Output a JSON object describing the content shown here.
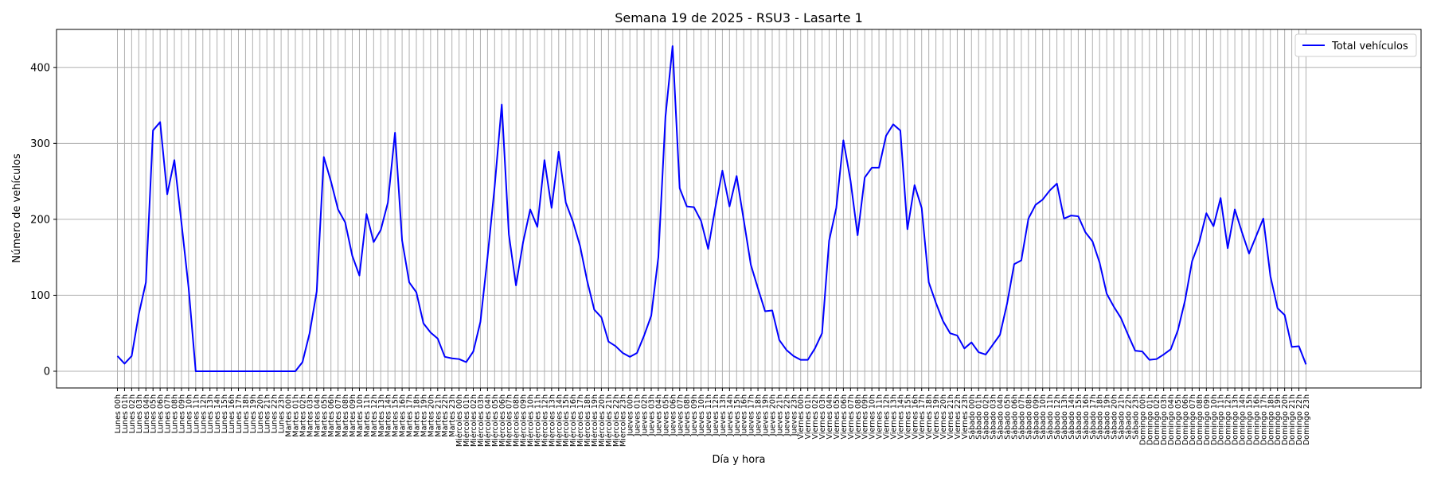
{
  "chart_data": {
    "type": "line",
    "title": "Semana 19 de 2025 - RSU3 - Lasarte 1",
    "xlabel": "Día y hora",
    "ylabel": "Número de vehículos",
    "ylim": [
      -22,
      450
    ],
    "yticks": [
      0,
      100,
      200,
      300,
      400
    ],
    "grid": true,
    "legend_position": "top-right",
    "days": [
      "Lunes",
      "Martes",
      "Miércoles",
      "Jueves",
      "Viernes",
      "Sábado",
      "Domingo"
    ],
    "hour_suffix": "h",
    "series": [
      {
        "name": "Total vehículos",
        "color": "#0000ff",
        "values": [
          20,
          10,
          20,
          75,
          117,
          317,
          328,
          233,
          278,
          195,
          110,
          0,
          0,
          0,
          0,
          0,
          0,
          0,
          0,
          0,
          0,
          0,
          0,
          0,
          0,
          0,
          12,
          50,
          105,
          282,
          250,
          213,
          196,
          152,
          126,
          207,
          170,
          186,
          222,
          314,
          172,
          117,
          104,
          63,
          51,
          43,
          19,
          17,
          16,
          12,
          26,
          65,
          150,
          243,
          351,
          180,
          113,
          170,
          213,
          190,
          278,
          215,
          289,
          222,
          197,
          165,
          119,
          81,
          71,
          39,
          33,
          24,
          19,
          24,
          47,
          73,
          150,
          335,
          428,
          241,
          217,
          216,
          198,
          161,
          215,
          264,
          217,
          257,
          199,
          140,
          109,
          79,
          80,
          41,
          28,
          20,
          15,
          15,
          30,
          50,
          172,
          215,
          304,
          251,
          179,
          255,
          268,
          268,
          310,
          325,
          317,
          187,
          245,
          215,
          117,
          90,
          66,
          50,
          47,
          30,
          38,
          25,
          22,
          35,
          48,
          89,
          141,
          146,
          201,
          219,
          226,
          238,
          247,
          201,
          205,
          204,
          183,
          171,
          143,
          102,
          85,
          70,
          48,
          27,
          26,
          15,
          16,
          22,
          29,
          54,
          93,
          145,
          170,
          208,
          191,
          228,
          162,
          213,
          183,
          155,
          178,
          201,
          125,
          83,
          74,
          32,
          33,
          9
        ]
      }
    ]
  }
}
